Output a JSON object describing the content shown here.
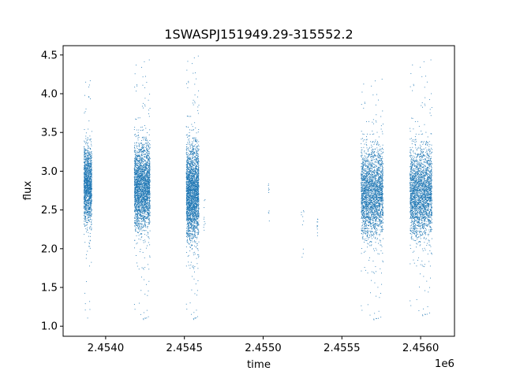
{
  "chart_data": {
    "type": "scatter",
    "title": "1SWASPJ151949.29-315552.2",
    "xlabel": "time",
    "ylabel": "flux",
    "x_offset_label": "1e6",
    "xlim": [
      2453730,
      2456215
    ],
    "ylim": [
      0.87,
      4.62
    ],
    "x_ticks": [
      2454000,
      2454500,
      2455000,
      2455500,
      2456000
    ],
    "x_tick_labels": [
      "2.4540",
      "2.4545",
      "2.4550",
      "2.4555",
      "2.4560"
    ],
    "y_ticks": [
      1.0,
      1.5,
      2.0,
      2.5,
      3.0,
      3.5,
      4.0,
      4.5
    ],
    "y_tick_labels": [
      "1.0",
      "1.5",
      "2.0",
      "2.5",
      "3.0",
      "3.5",
      "4.0",
      "4.5"
    ],
    "grid": false,
    "marker_color": "#1f77b4",
    "series": [
      {
        "clusters": [
          {
            "x_range": [
              2453860,
              2453910
            ],
            "y_center": 2.82,
            "y_spread": 0.25,
            "y_min": 1.1,
            "y_max": 4.25,
            "density": "high"
          },
          {
            "x_range": [
              2454180,
              2454280
            ],
            "y_center": 2.8,
            "y_spread": 0.27,
            "y_min": 1.05,
            "y_max": 4.45,
            "density": "very-high"
          },
          {
            "x_range": [
              2454510,
              2454590
            ],
            "y_center": 2.72,
            "y_spread": 0.3,
            "y_min": 1.05,
            "y_max": 4.5,
            "density": "very-high"
          },
          {
            "x_range": [
              2454620,
              2454630
            ],
            "y_center": 2.45,
            "y_spread": 0.18,
            "y_min": 2.2,
            "y_max": 2.65,
            "density": "sparse"
          },
          {
            "x_range": [
              2455030,
              2455040
            ],
            "y_center": 2.45,
            "y_spread": 0.25,
            "y_min": 2.1,
            "y_max": 2.85,
            "density": "sparse"
          },
          {
            "x_range": [
              2455240,
              2455260
            ],
            "y_center": 2.4,
            "y_spread": 0.3,
            "y_min": 1.75,
            "y_max": 2.75,
            "density": "sparse"
          },
          {
            "x_range": [
              2455340,
              2455345
            ],
            "y_center": 2.25,
            "y_spread": 0.1,
            "y_min": 2.15,
            "y_max": 2.4,
            "density": "sparse"
          },
          {
            "x_range": [
              2455620,
              2455760
            ],
            "y_center": 2.72,
            "y_spread": 0.28,
            "y_min": 1.05,
            "y_max": 4.2,
            "density": "very-high"
          },
          {
            "x_range": [
              2455930,
              2456070
            ],
            "y_center": 2.72,
            "y_spread": 0.28,
            "y_min": 1.1,
            "y_max": 4.45,
            "density": "very-high"
          }
        ]
      }
    ]
  }
}
